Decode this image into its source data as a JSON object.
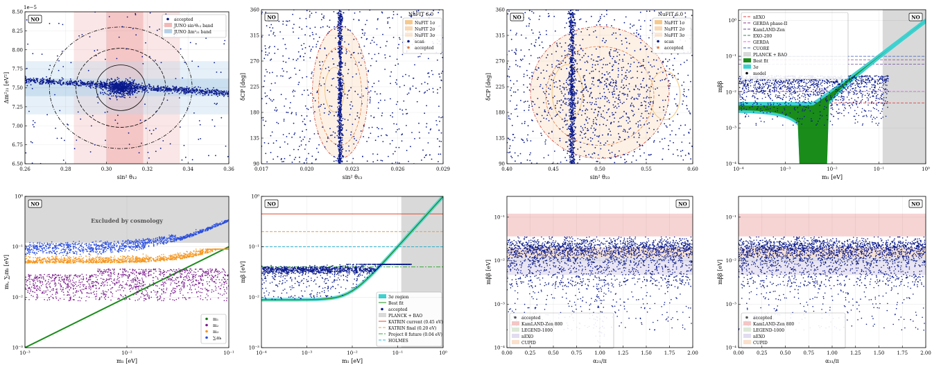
{
  "colors": {
    "scan": "#0a1a8c",
    "accepted": "#0a1a8c",
    "best_fit": "#1a8c1a",
    "band3": "#3fd1d1",
    "gray_excl": "#d9d9d9",
    "red_band": "#f2b8b8",
    "blue_band": "#b8d4ea",
    "orange_contour": "#f5c77e",
    "orange_dash": "#e87a3c",
    "red_dash": "#d23c2c"
  },
  "chart_data": [
    {
      "id": "p1",
      "type": "scatter",
      "badge": "NO",
      "title": "",
      "xlabel": "sin² θ₁₂",
      "ylabel": "Δm²₂₁ [eV²]",
      "offset_label": "1e−5",
      "xlim": [
        0.26,
        0.36
      ],
      "ylim": [
        6.5,
        8.5
      ],
      "xticks": [
        0.26,
        0.28,
        0.3,
        0.32,
        0.34,
        0.36
      ],
      "xticklabels": [
        "0.26",
        "0.28",
        "0.30",
        "0.32",
        "0.34",
        "0.36"
      ],
      "yticks": [
        6.5,
        6.75,
        7.0,
        7.25,
        7.5,
        7.75,
        8.0,
        8.25,
        8.5
      ],
      "yticklabels": [
        "6.50",
        "6.75",
        "7.00",
        "7.25",
        "7.50",
        "7.75",
        "8.00",
        "8.25",
        "8.50"
      ],
      "legend": [
        "accepted",
        "JUNO sin²θ₁₂ band",
        "JUNO Δm²₂₁ band"
      ],
      "bands_x": [
        [
          0.284,
          0.336
        ],
        [
          0.3,
          0.318
        ]
      ],
      "bands_y": [
        [
          7.15,
          7.85
        ],
        [
          7.39,
          7.62
        ]
      ],
      "ellipses": [
        {
          "cx": 0.307,
          "cy": 7.5,
          "rx": 0.012,
          "ry": 0.3
        },
        {
          "cx": 0.307,
          "cy": 7.5,
          "rx": 0.022,
          "ry": 0.52
        },
        {
          "cx": 0.307,
          "cy": 7.5,
          "rx": 0.035,
          "ry": 0.8
        }
      ],
      "trend": {
        "x": [
          0.26,
          0.36
        ],
        "y": [
          7.6,
          7.43
        ]
      }
    },
    {
      "id": "p2",
      "type": "scatter",
      "badge": "NO",
      "title": "NuFIT 6.0",
      "xlabel": "sin² θ₁₃",
      "ylabel": "δCP [deg]",
      "xlim": [
        0.017,
        0.029
      ],
      "ylim": [
        90,
        360
      ],
      "xticks": [
        0.017,
        0.02,
        0.023,
        0.026,
        0.029
      ],
      "xticklabels": [
        "0.017",
        "0.020",
        "0.023",
        "0.026",
        "0.029"
      ],
      "yticks": [
        90,
        135,
        180,
        225,
        270,
        315,
        360
      ],
      "yticklabels": [
        "90",
        "135",
        "180",
        "225",
        "270",
        "315",
        "360"
      ],
      "legend": [
        "NuFIT 1σ",
        "NuFIT 2σ",
        "NuFIT 3σ",
        "scan",
        "accepted"
      ],
      "strip_x": 0.0222
    },
    {
      "id": "p3",
      "type": "scatter",
      "badge": "NO",
      "title": "NuFIT 6.0",
      "xlabel": "sin² θ₂₃",
      "ylabel": "δCP [deg]",
      "xlim": [
        0.4,
        0.6
      ],
      "ylim": [
        90,
        360
      ],
      "xticks": [
        0.4,
        0.45,
        0.5,
        0.55,
        0.6
      ],
      "xticklabels": [
        "0.40",
        "0.45",
        "0.50",
        "0.55",
        "0.60"
      ],
      "yticks": [
        90,
        135,
        180,
        225,
        270,
        315,
        360
      ],
      "yticklabels": [
        "90",
        "135",
        "180",
        "225",
        "270",
        "315",
        "360"
      ],
      "legend": [
        "NuFIT 1σ",
        "NuFIT 2σ",
        "NuFIT 3σ",
        "scan",
        "accepted"
      ],
      "strip_x": 0.47
    },
    {
      "id": "p4",
      "type": "scatter",
      "badge": "NO",
      "title": "",
      "xlabel": "m₁ [eV]",
      "ylabel": "mββ",
      "log": true,
      "xlim": [
        0.0001,
        1
      ],
      "ylim": [
        0.0001,
        2
      ],
      "xticks": [
        0.0001,
        0.001,
        0.01,
        0.1,
        1
      ],
      "xticklabels": [
        "10⁻⁴",
        "10⁻³",
        "10⁻²",
        "10⁻¹",
        "10⁰"
      ],
      "yticks": [
        0.0001,
        0.001,
        0.01,
        0.1,
        1
      ],
      "yticklabels": [
        "10⁻⁴",
        "10⁻³",
        "10⁻²",
        "10⁻¹",
        "10⁰"
      ],
      "legend": [
        "nEXO",
        "GERDA phase-II",
        "KamLAND-Zen",
        "EXO-200",
        "GERDA",
        "CUORE",
        "PLANCK + BAO",
        "Best fit",
        "3σ",
        "model"
      ],
      "excluded_x": 0.12,
      "limits": [
        {
          "y": 0.1,
          "color": "#3a5fcd"
        },
        {
          "y": 0.08,
          "color": "#8b3a8b"
        },
        {
          "y": 0.06,
          "color": "#6a4a9a"
        },
        {
          "y": 0.0105,
          "color": "#ff55ff"
        },
        {
          "y": 0.005,
          "color": "#e04040"
        }
      ]
    },
    {
      "id": "p5",
      "type": "scatter",
      "badge": "NO",
      "title": "",
      "xlabel": "m₁ [eV]",
      "ylabel": "mᵢ, ∑ᵢmᵢ [eV]",
      "log": true,
      "xlim": [
        0.001,
        0.1
      ],
      "ylim": [
        0.001,
        1
      ],
      "xticks": [
        0.001,
        0.01,
        0.1
      ],
      "xticklabels": [
        "10⁻³",
        "10⁻²",
        "10⁻¹"
      ],
      "yticks": [
        0.001,
        0.01,
        0.1,
        1
      ],
      "yticklabels": [
        "10⁻³",
        "10⁻²",
        "10⁻¹",
        "10⁰"
      ],
      "legend": [
        "m₁",
        "m₂",
        "m₃",
        "∑ᵢmᵢ"
      ],
      "annotation": "Excluded by cosmology",
      "excluded_y": 0.12
    },
    {
      "id": "p6",
      "type": "scatter",
      "badge": "NO",
      "title": "",
      "xlabel": "m₁ [eV]",
      "ylabel": "mβ [eV]",
      "log": true,
      "xlim": [
        0.0001,
        1
      ],
      "ylim": [
        0.001,
        1
      ],
      "xticks": [
        0.0001,
        0.001,
        0.01,
        0.1,
        1
      ],
      "xticklabels": [
        "10⁻⁴",
        "10⁻³",
        "10⁻²",
        "10⁻¹",
        "10⁰"
      ],
      "yticks": [
        0.001,
        0.01,
        0.1,
        1
      ],
      "yticklabels": [
        "10⁻³",
        "10⁻²",
        "10⁻¹",
        "10⁰"
      ],
      "legend": [
        "3σ region",
        "Best fit",
        "accepted",
        "PLANCK + BAO",
        "KATRIN current (0.45 eV)",
        "KATRIN final (0.20 eV)",
        "Project 8 future (0.04 eV)",
        "HOLMES"
      ],
      "excluded_x": 0.12,
      "limits": [
        {
          "y": 0.45,
          "color": "#e04a2a",
          "dash": ""
        },
        {
          "y": 0.2,
          "color": "#f09a3a",
          "dash": "4,2"
        },
        {
          "y": 0.1,
          "color": "#2ab8d8",
          "dash": "4,2"
        },
        {
          "y": 0.04,
          "color": "#3aa83a",
          "dash": "6,2,2,2"
        }
      ]
    },
    {
      "id": "p7",
      "type": "scatter",
      "badge": "NO",
      "title": "",
      "xlabel": "α₂₁/π",
      "ylabel": "mββ [eV]",
      "log": true,
      "xlim": [
        0,
        2
      ],
      "ylim": [
        0.0001,
        0.3
      ],
      "xticks": [
        0,
        0.25,
        0.5,
        0.75,
        1.0,
        1.25,
        1.5,
        1.75,
        2.0
      ],
      "xticklabels": [
        "0.00",
        "0.25",
        "0.50",
        "0.75",
        "1.00",
        "1.25",
        "1.50",
        "1.75",
        "2.00"
      ],
      "yticks": [
        0.0001,
        0.001,
        0.01,
        0.1
      ],
      "yticklabels": [
        "10⁻⁴",
        "10⁻³",
        "10⁻²",
        "10⁻¹"
      ],
      "legend": [
        "accepted",
        "KamLAND-Zen 800",
        "LEGEND-1000",
        "nEXO",
        "CUPID"
      ],
      "bands": [
        {
          "lo": 0.036,
          "hi": 0.12,
          "color": "#f4c6c6"
        },
        {
          "lo": 0.009,
          "hi": 0.02,
          "color": "#dde8d8"
        },
        {
          "lo": 0.0047,
          "hi": 0.02,
          "color": "#e2dcf0"
        },
        {
          "lo": 0.012,
          "hi": 0.02,
          "color": "#fbe0cc"
        }
      ],
      "dip_x": 1.0
    },
    {
      "id": "p8",
      "type": "scatter",
      "badge": "NO",
      "title": "",
      "xlabel": "α₃₁/π",
      "ylabel": "mββ [eV]",
      "log": true,
      "xlim": [
        0,
        2
      ],
      "ylim": [
        0.0001,
        0.3
      ],
      "xticks": [
        0,
        0.25,
        0.5,
        0.75,
        1.0,
        1.25,
        1.5,
        1.75,
        2.0
      ],
      "xticklabels": [
        "0.00",
        "0.25",
        "0.50",
        "0.75",
        "1.00",
        "1.25",
        "1.50",
        "1.75",
        "2.00"
      ],
      "yticks": [
        0.0001,
        0.001,
        0.01,
        0.1
      ],
      "yticklabels": [
        "10⁻⁴",
        "10⁻³",
        "10⁻²",
        "10⁻¹"
      ],
      "legend": [
        "accepted",
        "KamLAND-Zen 800",
        "LEGEND-1000",
        "nEXO",
        "CUPID"
      ],
      "bands": [
        {
          "lo": 0.036,
          "hi": 0.12,
          "color": "#f4c6c6"
        },
        {
          "lo": 0.009,
          "hi": 0.02,
          "color": "#dde8d8"
        },
        {
          "lo": 0.0047,
          "hi": 0.02,
          "color": "#e2dcf0"
        },
        {
          "lo": 0.012,
          "hi": 0.02,
          "color": "#fbe0cc"
        }
      ]
    }
  ]
}
